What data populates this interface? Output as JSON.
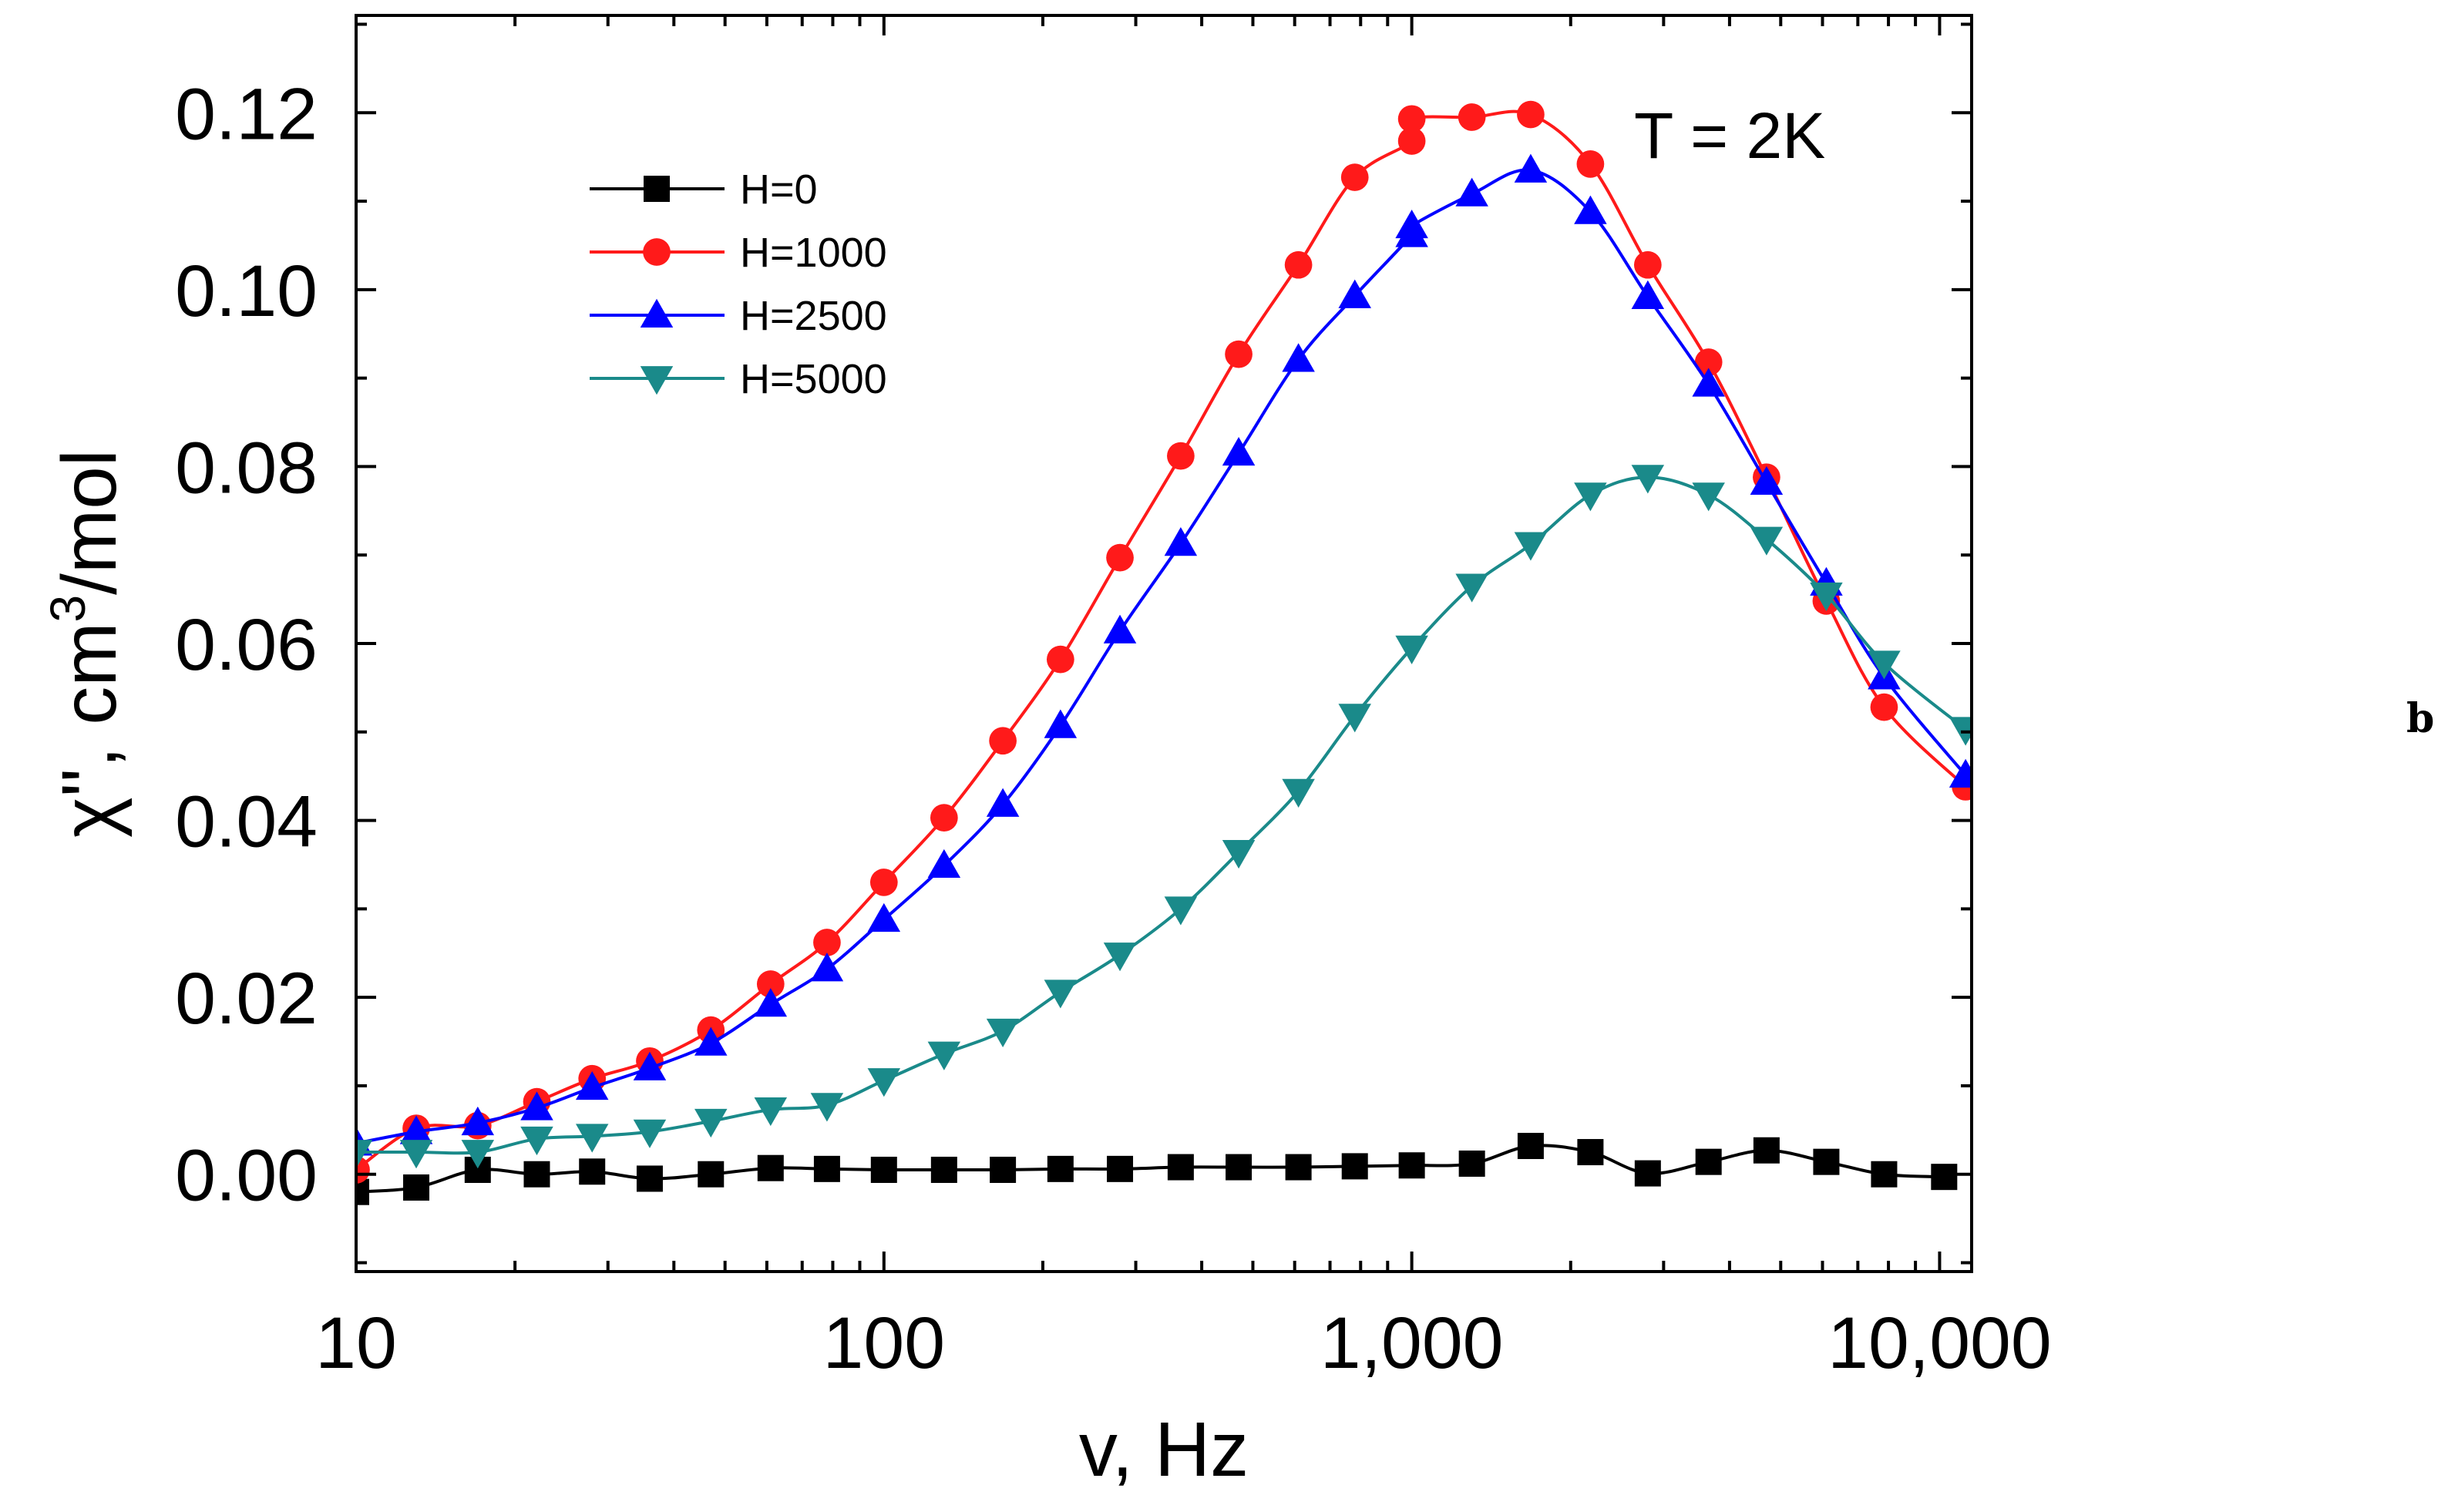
{
  "chart_data": {
    "type": "line",
    "x_scale": "log",
    "xlabel": "v, Hz",
    "ylabel_main": "χ'', cm",
    "ylabel_sup": "3",
    "ylabel_tail": "/mol",
    "xlim": [
      10,
      11500
    ],
    "ylim": [
      -0.011,
      0.131
    ],
    "x_ticks": [
      {
        "value": 10,
        "label": "10"
      },
      {
        "value": 100,
        "label": "100"
      },
      {
        "value": 1000,
        "label": "1,000"
      },
      {
        "value": 10000,
        "label": "10,000"
      }
    ],
    "y_ticks": [
      {
        "value": 0.0,
        "label": "0.00"
      },
      {
        "value": 0.02,
        "label": "0.02"
      },
      {
        "value": 0.04,
        "label": "0.04"
      },
      {
        "value": 0.06,
        "label": "0.06"
      },
      {
        "value": 0.08,
        "label": "0.08"
      },
      {
        "value": 0.1,
        "label": "0.10"
      },
      {
        "value": 0.12,
        "label": "0.12"
      }
    ],
    "annotation": "T = 2K",
    "panel_label": "b",
    "legend_position": "top-left",
    "series": [
      {
        "name": "H=0",
        "color": "#000000",
        "marker": "square",
        "points": [
          [
            10,
            -0.002
          ],
          [
            13,
            -0.0015
          ],
          [
            17,
            0.0005
          ],
          [
            22,
            0.0
          ],
          [
            28,
            0.0003
          ],
          [
            36,
            -0.0005
          ],
          [
            47,
            0.0
          ],
          [
            61,
            0.0007
          ],
          [
            78,
            0.0006
          ],
          [
            100,
            0.0005
          ],
          [
            130,
            0.0005
          ],
          [
            168,
            0.0005
          ],
          [
            216,
            0.0006
          ],
          [
            280,
            0.0006
          ],
          [
            365,
            0.0008
          ],
          [
            470,
            0.0008
          ],
          [
            610,
            0.0008
          ],
          [
            780,
            0.0009
          ],
          [
            1000,
            0.001
          ],
          [
            1300,
            0.0012
          ],
          [
            1680,
            0.0032
          ],
          [
            2180,
            0.0025
          ],
          [
            2800,
            0.0001
          ],
          [
            3650,
            0.0014
          ],
          [
            4700,
            0.0027
          ],
          [
            6100,
            0.0014
          ],
          [
            7850,
            0.0
          ],
          [
            10200,
            -0.0003
          ]
        ]
      },
      {
        "name": "H=1000",
        "color": "#ff1a1a",
        "marker": "circle",
        "points": [
          [
            10,
            0.0005
          ],
          [
            13,
            0.0052
          ],
          [
            17,
            0.0055
          ],
          [
            22,
            0.0082
          ],
          [
            28,
            0.0108
          ],
          [
            36,
            0.0128
          ],
          [
            47,
            0.0163
          ],
          [
            61,
            0.0215
          ],
          [
            78,
            0.0262
          ],
          [
            100,
            0.033
          ],
          [
            130,
            0.0403
          ],
          [
            168,
            0.049
          ],
          [
            216,
            0.0582
          ],
          [
            280,
            0.0697
          ],
          [
            365,
            0.0812
          ],
          [
            470,
            0.0927
          ],
          [
            610,
            0.1028
          ],
          [
            780,
            0.1127
          ],
          [
            1000,
            0.1168
          ],
          [
            1000,
            0.1193
          ],
          [
            1300,
            0.1195
          ],
          [
            1680,
            0.1198
          ],
          [
            2180,
            0.1142
          ],
          [
            2800,
            0.1028
          ],
          [
            3650,
            0.0918
          ],
          [
            4700,
            0.0788
          ],
          [
            6100,
            0.0648
          ],
          [
            7850,
            0.0528
          ],
          [
            11200,
            0.0438
          ]
        ]
      },
      {
        "name": "H=2500",
        "color": "#0000ff",
        "marker": "triangle-up",
        "points": [
          [
            10,
            0.0035
          ],
          [
            13,
            0.0048
          ],
          [
            17,
            0.0058
          ],
          [
            22,
            0.0075
          ],
          [
            28,
            0.0098
          ],
          [
            36,
            0.012
          ],
          [
            47,
            0.0148
          ],
          [
            61,
            0.0192
          ],
          [
            78,
            0.0232
          ],
          [
            100,
            0.0288
          ],
          [
            130,
            0.0349
          ],
          [
            168,
            0.0418
          ],
          [
            216,
            0.0507
          ],
          [
            280,
            0.0614
          ],
          [
            365,
            0.0713
          ],
          [
            470,
            0.0815
          ],
          [
            610,
            0.0921
          ],
          [
            780,
            0.0993
          ],
          [
            1000,
            0.1062
          ],
          [
            1000,
            0.1072
          ],
          [
            1300,
            0.1108
          ],
          [
            1680,
            0.1135
          ],
          [
            2180,
            0.1088
          ],
          [
            2800,
            0.0992
          ],
          [
            3650,
            0.0893
          ],
          [
            4700,
            0.0782
          ],
          [
            6100,
            0.0668
          ],
          [
            7850,
            0.0562
          ],
          [
            11200,
            0.0451
          ]
        ]
      },
      {
        "name": "H=5000",
        "color": "#1a8a8a",
        "marker": "triangle-down",
        "points": [
          [
            10,
            0.0025
          ],
          [
            13,
            0.0025
          ],
          [
            17,
            0.0025
          ],
          [
            22,
            0.004
          ],
          [
            28,
            0.0043
          ],
          [
            36,
            0.0048
          ],
          [
            47,
            0.006
          ],
          [
            61,
            0.0073
          ],
          [
            78,
            0.0078
          ],
          [
            100,
            0.0106
          ],
          [
            130,
            0.0136
          ],
          [
            168,
            0.0162
          ],
          [
            216,
            0.0206
          ],
          [
            280,
            0.0248
          ],
          [
            365,
            0.03
          ],
          [
            470,
            0.0364
          ],
          [
            610,
            0.0433
          ],
          [
            780,
            0.0518
          ],
          [
            1000,
            0.0595
          ],
          [
            1300,
            0.0665
          ],
          [
            1680,
            0.0712
          ],
          [
            2180,
            0.0768
          ],
          [
            2800,
            0.0788
          ],
          [
            3650,
            0.0768
          ],
          [
            4700,
            0.0718
          ],
          [
            6100,
            0.0655
          ],
          [
            7850,
            0.0578
          ],
          [
            11200,
            0.0503
          ]
        ]
      }
    ]
  }
}
